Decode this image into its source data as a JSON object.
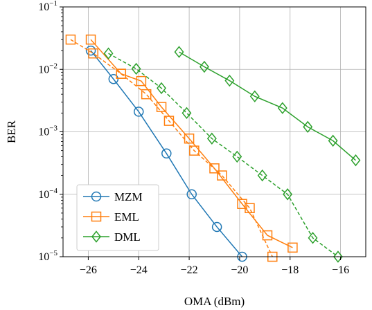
{
  "chart_data": {
    "type": "line",
    "xlabel": "OMA (dBm)",
    "ylabel": "BER",
    "xlim": [
      -27,
      -15
    ],
    "ylim": [
      1e-05,
      0.1
    ],
    "yscale": "log",
    "grid": true,
    "legend_position": "bottom-left",
    "x_ticks": [
      {
        "value": -26,
        "label": "−26"
      },
      {
        "value": -24,
        "label": "−24"
      },
      {
        "value": -22,
        "label": "−22"
      },
      {
        "value": -20,
        "label": "−20"
      },
      {
        "value": -18,
        "label": "−18"
      },
      {
        "value": -16,
        "label": "−16"
      }
    ],
    "y_ticks": [
      {
        "exp": -5,
        "base": "10",
        "sup": "−5"
      },
      {
        "exp": -4,
        "base": "10",
        "sup": "−4"
      },
      {
        "exp": -3,
        "base": "10",
        "sup": "−3"
      },
      {
        "exp": -2,
        "base": "10",
        "sup": "−2"
      },
      {
        "exp": -1,
        "base": "10",
        "sup": "−1"
      }
    ],
    "series": [
      {
        "name": "MZM",
        "color": "#1f77b4",
        "marker": "circle",
        "dash": "solid",
        "points": [
          [
            -25.9,
            0.02
          ],
          [
            -25.0,
            0.007
          ],
          [
            -24.0,
            0.0021
          ],
          [
            -22.9,
            0.00045
          ],
          [
            -21.9,
            0.0001
          ],
          [
            -20.9,
            3e-05
          ],
          [
            -19.9,
            1e-05
          ]
        ]
      },
      {
        "name": "EML",
        "color": "#ff7f0e",
        "marker": "square",
        "dash": "solid",
        "points": [
          [
            -25.9,
            0.03
          ],
          [
            -24.7,
            0.0085
          ],
          [
            -23.9,
            0.0065
          ],
          [
            -23.1,
            0.0025
          ],
          [
            -22.0,
            0.00078
          ],
          [
            -21.0,
            0.00026
          ],
          [
            -19.9,
            7e-05
          ],
          [
            -18.9,
            2.2e-05
          ],
          [
            -17.9,
            1.4e-05
          ]
        ]
      },
      {
        "name": "EML",
        "color": "#ff7f0e",
        "marker": "square",
        "dash": "dashed",
        "points": [
          [
            -26.7,
            0.03
          ],
          [
            -25.8,
            0.018
          ],
          [
            -24.7,
            0.0085
          ],
          [
            -23.7,
            0.004
          ],
          [
            -22.8,
            0.0015
          ],
          [
            -21.8,
            0.0005
          ],
          [
            -20.7,
            0.0002
          ],
          [
            -19.6,
            6e-05
          ],
          [
            -18.7,
            1e-05
          ]
        ]
      },
      {
        "name": "DML",
        "color": "#2ca02c",
        "marker": "diamond",
        "dash": "solid",
        "points": [
          [
            -22.4,
            0.019
          ],
          [
            -21.4,
            0.011
          ],
          [
            -20.4,
            0.0066
          ],
          [
            -19.4,
            0.0037
          ],
          [
            -18.3,
            0.0024
          ],
          [
            -17.3,
            0.0012
          ],
          [
            -16.3,
            0.00072
          ],
          [
            -15.4,
            0.00035
          ]
        ]
      },
      {
        "name": "DML",
        "color": "#2ca02c",
        "marker": "diamond",
        "dash": "dashed",
        "points": [
          [
            -25.2,
            0.018
          ],
          [
            -24.1,
            0.0102
          ],
          [
            -23.1,
            0.005
          ],
          [
            -22.1,
            0.002
          ],
          [
            -21.1,
            0.00078
          ],
          [
            -20.1,
            0.0004
          ],
          [
            -19.1,
            0.0002
          ],
          [
            -18.1,
            0.0001
          ],
          [
            -17.1,
            2e-05
          ],
          [
            -16.1,
            1e-05
          ]
        ]
      }
    ],
    "legend": [
      {
        "label": "MZM",
        "color": "#1f77b4",
        "marker": "circle"
      },
      {
        "label": "EML",
        "color": "#ff7f0e",
        "marker": "square"
      },
      {
        "label": "DML",
        "color": "#2ca02c",
        "marker": "diamond"
      }
    ]
  }
}
